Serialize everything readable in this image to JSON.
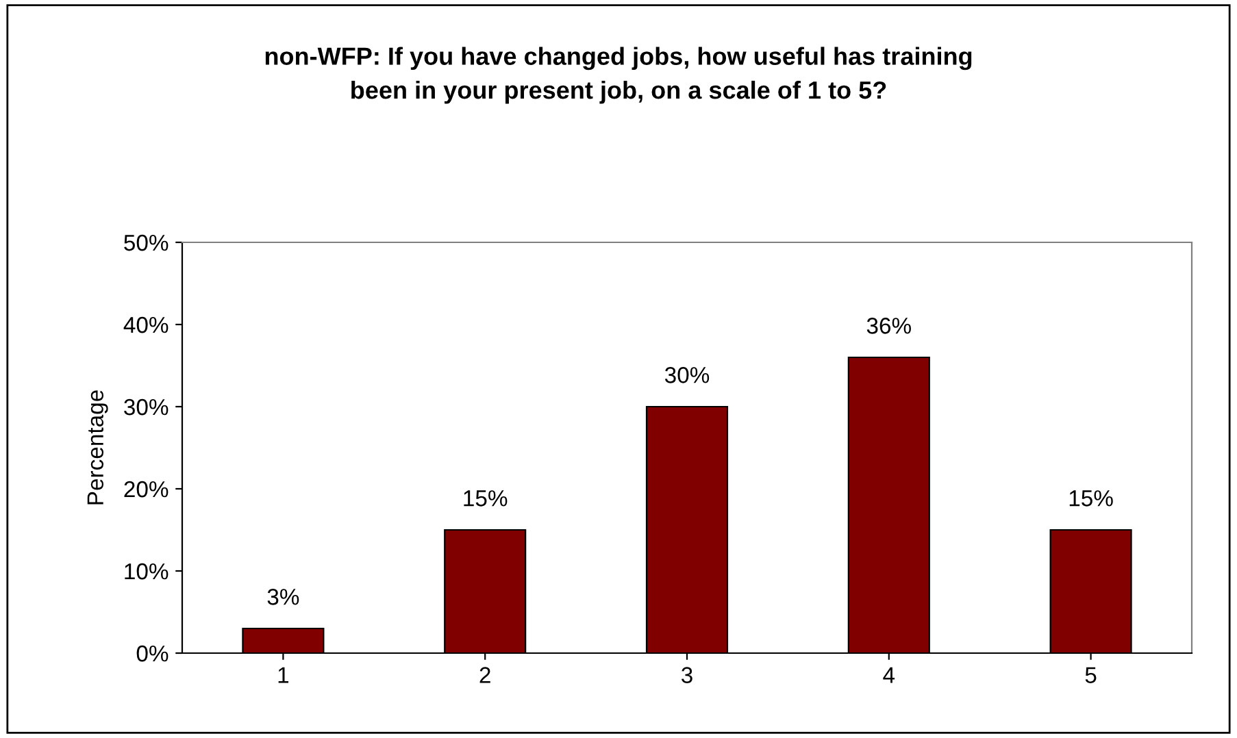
{
  "chart_data": {
    "type": "bar",
    "title": "non-WFP: If you have changed jobs, how useful has training\nbeen in your present job, on a scale of 1 to 5?",
    "ylabel": "Percentage",
    "categories": [
      "1",
      "2",
      "3",
      "4",
      "5"
    ],
    "values": [
      3,
      15,
      30,
      36,
      15
    ],
    "value_labels": [
      "3%",
      "15%",
      "30%",
      "36%",
      "15%"
    ],
    "color": "#800000",
    "ylim": [
      0,
      50
    ],
    "yticks": [
      {
        "value": 0,
        "label": "0%"
      },
      {
        "value": 10,
        "label": "10%"
      },
      {
        "value": 20,
        "label": "20%"
      },
      {
        "value": 30,
        "label": "30%"
      },
      {
        "value": 40,
        "label": "40%"
      },
      {
        "value": 50,
        "label": "50%"
      }
    ],
    "grid": false,
    "legend": false
  }
}
